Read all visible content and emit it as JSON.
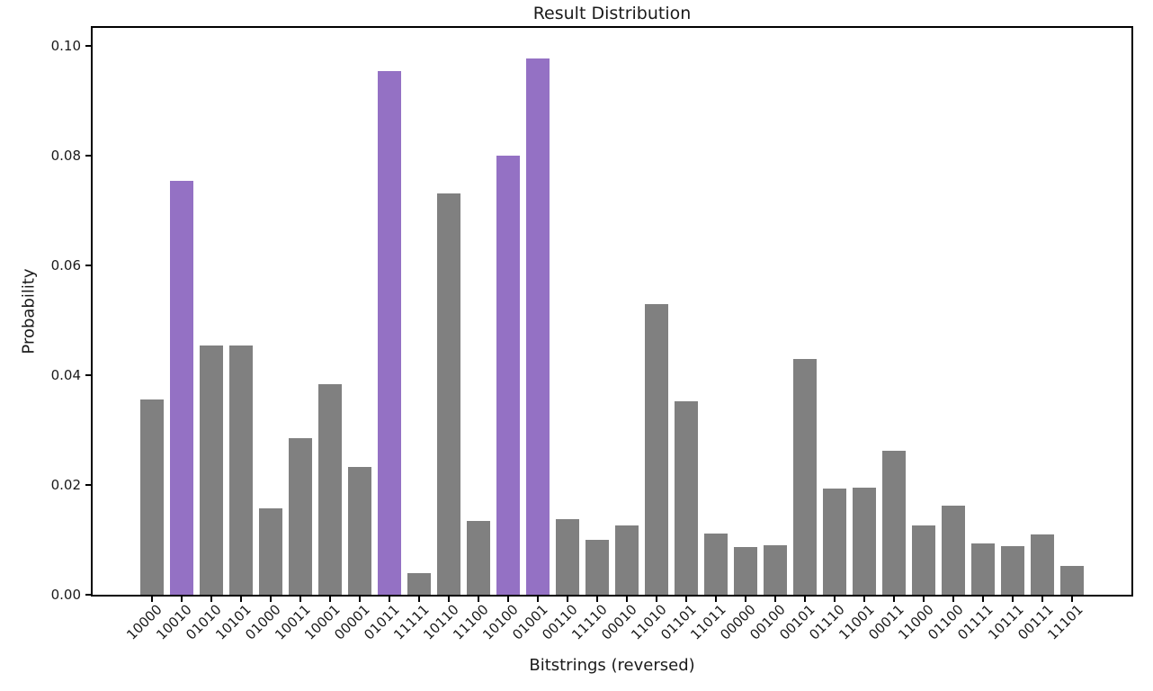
{
  "chart_data": {
    "type": "bar",
    "title": "Result Distribution",
    "xlabel": "Bitstrings (reversed)",
    "ylabel": "Probability",
    "categories": [
      "10000",
      "10010",
      "01010",
      "10101",
      "01000",
      "10011",
      "10001",
      "00001",
      "01011",
      "11111",
      "10110",
      "11100",
      "10100",
      "01001",
      "00110",
      "11110",
      "00010",
      "11010",
      "01101",
      "11011",
      "00000",
      "00100",
      "00101",
      "01110",
      "11001",
      "00011",
      "11000",
      "01100",
      "01111",
      "10111",
      "00111",
      "11101"
    ],
    "values": [
      0.0356,
      0.0754,
      0.0455,
      0.0455,
      0.0158,
      0.0286,
      0.0384,
      0.0233,
      0.0955,
      0.0039,
      0.0731,
      0.0135,
      0.0801,
      0.0977,
      0.0137,
      0.01,
      0.0126,
      0.053,
      0.0352,
      0.0112,
      0.0087,
      0.0091,
      0.0429,
      0.0193,
      0.0196,
      0.0262,
      0.0126,
      0.0162,
      0.0093,
      0.0089,
      0.011,
      0.0053
    ],
    "highlighted_categories": [
      "10010",
      "01011",
      "10100",
      "01001"
    ],
    "bar_color_default": "#808080",
    "bar_color_highlight": "#9471c4",
    "ytick_labels": [
      "0.00",
      "0.02",
      "0.04",
      "0.06",
      "0.08",
      "0.10"
    ],
    "ytick_values": [
      0.0,
      0.02,
      0.04,
      0.06,
      0.08,
      0.1
    ],
    "ylim": [
      0,
      0.1033
    ],
    "grid": false,
    "legend_position": "none",
    "spine_color": "#000000",
    "background_color": "#ffffff"
  }
}
